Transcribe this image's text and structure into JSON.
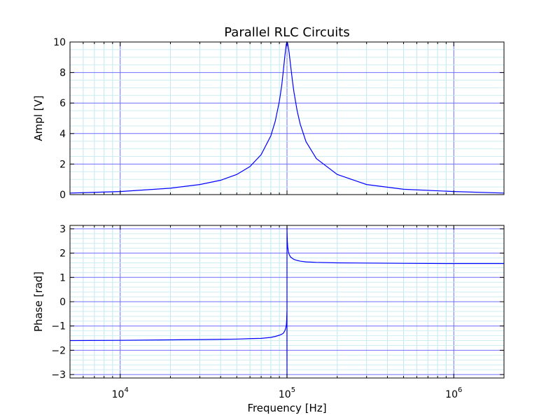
{
  "chart_data": [
    {
      "type": "line",
      "title": "Parallel RLC Circuits",
      "xlabel": "",
      "ylabel": "Ampl [V]",
      "xscale": "log",
      "xlim": [
        5000,
        2000000
      ],
      "ylim": [
        0,
        10
      ],
      "yticks": [
        0,
        2,
        4,
        6,
        8,
        10
      ],
      "ytick_labels": [
        "0",
        "2",
        "4",
        "6",
        "8",
        "10"
      ],
      "grid": true,
      "line_color": "#0000ff",
      "series": [
        {
          "x": [
            5000,
            10000,
            20000,
            30000,
            40000,
            50000,
            60000,
            70000,
            80000,
            85000,
            90000,
            93000,
            95000,
            97000,
            99000,
            100000,
            101000,
            103000,
            105000,
            108000,
            110000,
            115000,
            120000,
            130000,
            150000,
            200000,
            300000,
            500000,
            1000000,
            2000000
          ],
          "y": [
            0.1,
            0.2,
            0.42,
            0.66,
            0.94,
            1.32,
            1.84,
            2.62,
            3.85,
            4.8,
            6.12,
            7.16,
            8.08,
            9.04,
            9.86,
            10.0,
            9.9,
            9.3,
            8.5,
            7.39,
            6.74,
            5.5,
            4.62,
            3.47,
            2.36,
            1.32,
            0.66,
            0.35,
            0.2,
            0.1
          ]
        }
      ]
    },
    {
      "type": "line",
      "title": "",
      "xlabel": "Frequency [Hz]",
      "ylabel": "Phase [rad]",
      "xscale": "log",
      "xlim": [
        5000,
        2000000
      ],
      "ylim": [
        -3.1416,
        3.1416
      ],
      "yticks": [
        -3,
        -2,
        -1,
        0,
        1,
        2,
        3
      ],
      "ytick_labels": [
        "−3",
        "−2",
        "−1",
        "0",
        "1",
        "2",
        "3"
      ],
      "xticks": [
        10000,
        100000,
        1000000
      ],
      "xtick_labels": [
        {
          "base": "10",
          "exp": "4"
        },
        {
          "base": "10",
          "exp": "5"
        },
        {
          "base": "10",
          "exp": "6"
        }
      ],
      "grid": true,
      "line_color": "#0000ff",
      "series": [
        {
          "x": [
            5000,
            10000,
            20000,
            30000,
            40000,
            50000,
            60000,
            70000,
            80000,
            85000,
            90000,
            93000,
            95000,
            97000,
            98000,
            99000,
            99500,
            99900,
            100000,
            100000,
            100100,
            100500,
            101000,
            102000,
            103000,
            105000,
            108000,
            110000,
            115000,
            120000,
            130000,
            150000,
            200000,
            300000,
            500000,
            1000000,
            2000000
          ],
          "y": [
            -1.6,
            -1.59,
            -1.57,
            -1.56,
            -1.55,
            -1.54,
            -1.52,
            -1.51,
            -1.47,
            -1.43,
            -1.38,
            -1.34,
            -1.3,
            -1.2,
            -1.12,
            -0.98,
            -0.8,
            -0.4,
            -3.14,
            3.14,
            2.86,
            2.48,
            2.25,
            2.05,
            1.95,
            1.84,
            1.78,
            1.74,
            1.7,
            1.67,
            1.64,
            1.62,
            1.6,
            1.59,
            1.58,
            1.57,
            1.57
          ]
        }
      ]
    }
  ]
}
